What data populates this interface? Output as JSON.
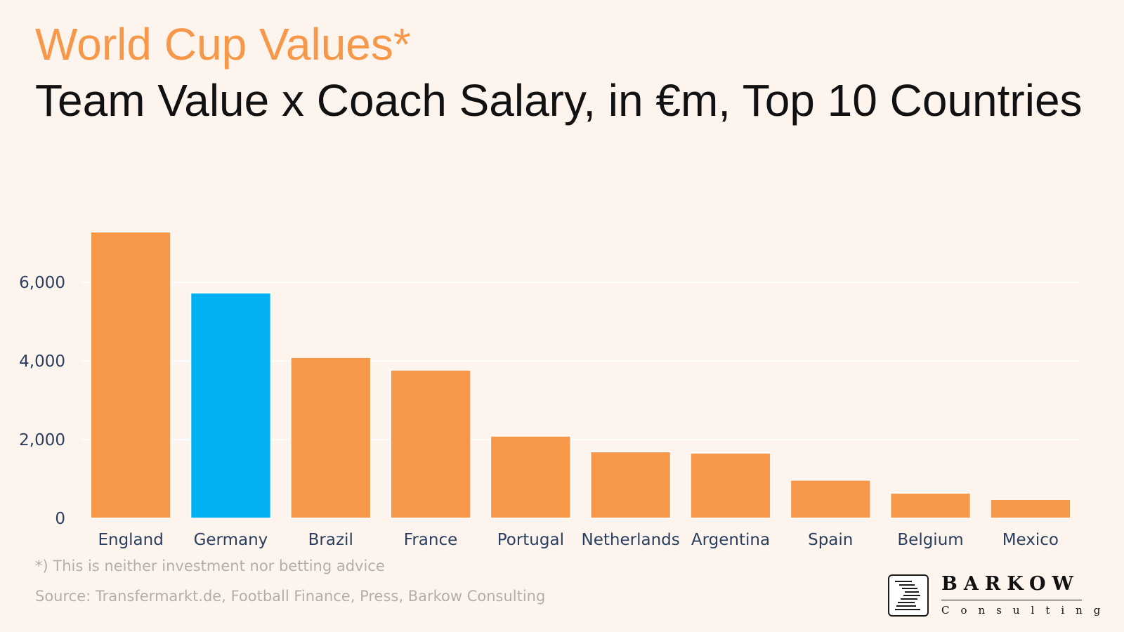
{
  "header": {
    "title": "World Cup Values*",
    "subtitle": "Team Value x Coach Salary, in €m, Top 10 Countries"
  },
  "footnotes": {
    "disclaimer": "*) This is neither investment nor betting advice",
    "source": "Source: Transfermarkt.de, Football Finance, Press, Barkow Consulting"
  },
  "logo": {
    "wordmark": "BARKOW",
    "tagline": "Consulting"
  },
  "colors": {
    "background": "#fdf5ed",
    "bar_default": "#f6974a",
    "bar_highlight": "#00b0f0",
    "title": "#f6974a",
    "axis_text": "#2a3f5f",
    "grid": "#ffffff"
  },
  "chart_data": {
    "type": "bar",
    "title": "Team Value x Coach Salary, in €m, Top 10 Countries",
    "xlabel": "",
    "ylabel": "",
    "categories": [
      "England",
      "Germany",
      "Brazil",
      "France",
      "Portugal",
      "Netherlands",
      "Argentina",
      "Spain",
      "Belgium",
      "Mexico"
    ],
    "values": [
      7280,
      5730,
      4090,
      3770,
      2090,
      1690,
      1660,
      970,
      640,
      480
    ],
    "highlight": "Germany",
    "ylim": [
      0,
      7500
    ],
    "yticks": [
      0,
      2000,
      4000,
      6000
    ],
    "ytick_labels": [
      "0",
      "2,000",
      "4,000",
      "6,000"
    ],
    "grid": true,
    "legend": "none"
  }
}
